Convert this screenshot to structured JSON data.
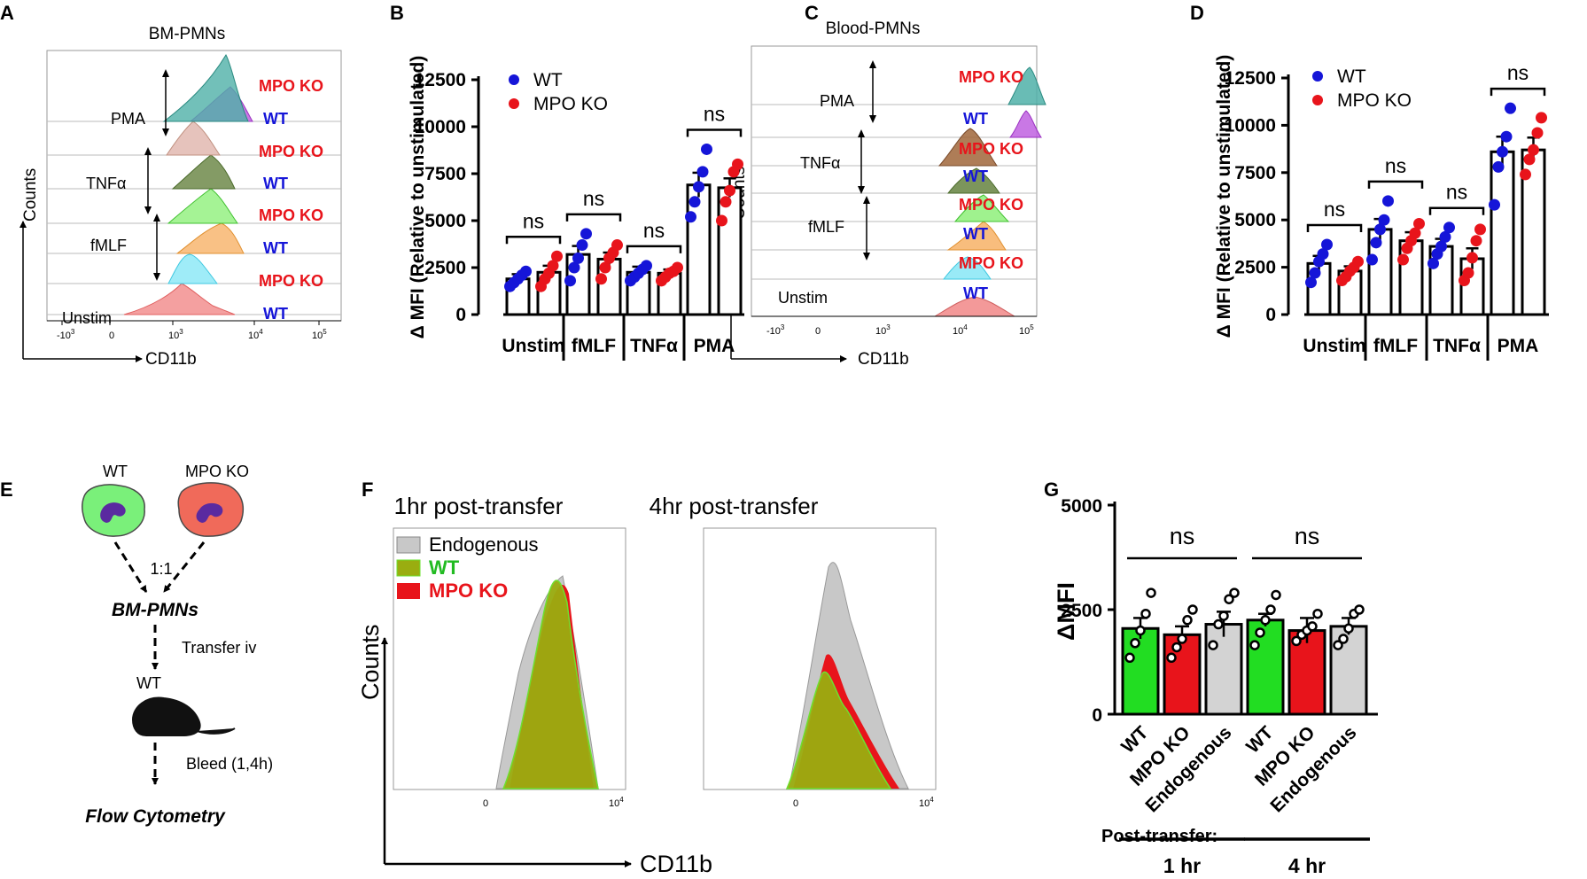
{
  "panels": {
    "A": {
      "letter": "A",
      "title": "BM-PMNs",
      "ylabel": "Counts",
      "xlabel": "CD11b",
      "ticks": {
        "neg3": "-10",
        "neg3_exp": "3",
        "zero": "0",
        "t3": "10",
        "t3_exp": "3",
        "t4": "10",
        "t4_exp": "4",
        "t5": "10",
        "t5_exp": "5"
      },
      "stim": {
        "pma": "PMA",
        "tnf": "TNFα",
        "fmlf": "fMLF",
        "unstim": "Unstim"
      },
      "rows": [
        "MPO KO",
        "WT",
        "MPO KO",
        "WT",
        "MPO KO",
        "WT",
        "MPO KO",
        "WT"
      ]
    },
    "B": {
      "letter": "B"
    },
    "C": {
      "letter": "C",
      "title": "Blood-PMNs",
      "ylabel": "Counts",
      "xlabel": "CD11b",
      "ticks": {
        "neg3": "-10",
        "neg3_exp": "3",
        "zero": "0",
        "t3": "10",
        "t3_exp": "3",
        "t4": "10",
        "t4_exp": "4",
        "t5": "10",
        "t5_exp": "5"
      },
      "stim": {
        "pma": "PMA",
        "tnf": "TNFα",
        "fmlf": "fMLF",
        "unstim": "Unstim"
      },
      "rows": [
        "MPO KO",
        "WT",
        "MPO KO",
        "WT",
        "MPO KO",
        "WT",
        "MPO KO",
        "WT"
      ]
    },
    "D": {
      "letter": "D"
    },
    "E": {
      "letter": "E",
      "wt": "WT",
      "ko": "MPO KO",
      "ratio": "1:1",
      "bm": "BM-PMNs",
      "transfer": "Transfer iv",
      "recipient": "WT",
      "bleed": "Bleed (1,4h)",
      "flow": "Flow Cytometry"
    },
    "F": {
      "letter": "F",
      "title_1": "1hr  post-transfer",
      "title_4": "4hr  post-transfer",
      "ylabel": "Counts",
      "xlabel": "CD11b",
      "legend": {
        "endogenous": "Endogenous",
        "wt": "WT",
        "ko": "MPO KO"
      },
      "ticks": {
        "zero": "0",
        "t4": "10",
        "t4_exp": "4"
      }
    },
    "G": {
      "letter": "G"
    }
  },
  "colors": {
    "wt_blue": "#1515d8",
    "ko_red": "#e8141b",
    "green": "#22dd22",
    "grey": "#d3d3d3",
    "olive": "#9aad10"
  },
  "chart_data": [
    {
      "id": "B",
      "type": "bar",
      "ylabel": "Δ MFI (Relative to unstimulated)",
      "ylim": [
        0,
        12500
      ],
      "yticks": [
        "0",
        "2500",
        "5000",
        "7500",
        "10000",
        "12500"
      ],
      "categories": [
        "Unstim",
        "fMLF",
        "TNFα",
        "PMA"
      ],
      "legend": [
        "WT",
        "MPO KO"
      ],
      "series": [
        {
          "name": "WT",
          "values": [
            1900,
            3200,
            2250,
            6900
          ],
          "errors": [
            250,
            450,
            300,
            650
          ],
          "points": [
            [
              1500,
              1700,
              1900,
              2100,
              2300
            ],
            [
              1800,
              2500,
              3000,
              3700,
              4300
            ],
            [
              1800,
              2000,
              2200,
              2400,
              2600
            ],
            [
              5200,
              6000,
              6800,
              7600,
              8800
            ]
          ]
        },
        {
          "name": "MPO KO",
          "values": [
            2250,
            2950,
            2200,
            6750
          ],
          "errors": [
            350,
            350,
            200,
            500
          ],
          "points": [
            [
              1500,
              1900,
              2200,
              2600,
              3100
            ],
            [
              1900,
              2500,
              3000,
              3300,
              3700
            ],
            [
              1800,
              2000,
              2200,
              2300,
              2500
            ],
            [
              5000,
              6000,
              6600,
              7600,
              8000
            ]
          ]
        }
      ],
      "annotations": [
        "ns",
        "ns",
        "ns",
        "ns"
      ]
    },
    {
      "id": "D",
      "type": "bar",
      "ylabel": "Δ MFI (Relative to unstimulated)",
      "ylim": [
        0,
        12500
      ],
      "yticks": [
        "0",
        "2500",
        "5000",
        "7500",
        "10000",
        "12500"
      ],
      "categories": [
        "Unstim",
        "fMLF",
        "TNFα",
        "PMA"
      ],
      "legend": [
        "WT",
        "MPO KO"
      ],
      "series": [
        {
          "name": "WT",
          "values": [
            2700,
            4500,
            3600,
            8600
          ],
          "errors": [
            400,
            550,
            400,
            800
          ],
          "points": [
            [
              1700,
              2200,
              2800,
              3200,
              3700
            ],
            [
              2900,
              3800,
              4500,
              5000,
              6000
            ],
            [
              2700,
              3200,
              3600,
              4100,
              4600
            ],
            [
              5800,
              7800,
              8600,
              9400,
              10900
            ]
          ]
        },
        {
          "name": "MPO KO",
          "values": [
            2300,
            3900,
            2950,
            8700
          ],
          "errors": [
            250,
            450,
            550,
            650
          ],
          "points": [
            [
              1800,
              2000,
              2300,
              2500,
              2800
            ],
            [
              2900,
              3500,
              3900,
              4300,
              4800
            ],
            [
              1800,
              2200,
              3000,
              3900,
              4500
            ],
            [
              7400,
              8200,
              8700,
              9600,
              10400
            ]
          ]
        }
      ],
      "annotations": [
        "ns",
        "ns",
        "ns",
        "ns"
      ]
    },
    {
      "id": "G",
      "type": "bar",
      "ylabel": "ΔMFI",
      "ylim": [
        0,
        5000
      ],
      "yticks": [
        "0",
        "2500",
        "5000"
      ],
      "categories": [
        "WT",
        "MPO KO",
        "Endogenous",
        "WT",
        "MPO KO",
        "Endogenous"
      ],
      "values": [
        2050,
        1900,
        2150,
        2250,
        2000,
        2100
      ],
      "errors": [
        250,
        200,
        300,
        150,
        300,
        200
      ],
      "colors": [
        "#22dd22",
        "#e8141b",
        "#d3d3d3",
        "#22dd22",
        "#e8141b",
        "#d3d3d3"
      ],
      "points": [
        [
          1350,
          1700,
          2000,
          2400,
          2900
        ],
        [
          1350,
          1600,
          1800,
          2250,
          2500
        ],
        [
          1650,
          2150,
          2350,
          2750,
          2900
        ],
        [
          1650,
          1950,
          2250,
          2500,
          2850
        ],
        [
          1750,
          1900,
          2000,
          2100,
          2400
        ],
        [
          1650,
          1800,
          2050,
          2400,
          2500
        ]
      ],
      "groups": [
        "1 hr",
        "4 hr"
      ],
      "group_label": "Post-transfer:",
      "annotations": [
        "ns",
        "ns"
      ]
    }
  ]
}
